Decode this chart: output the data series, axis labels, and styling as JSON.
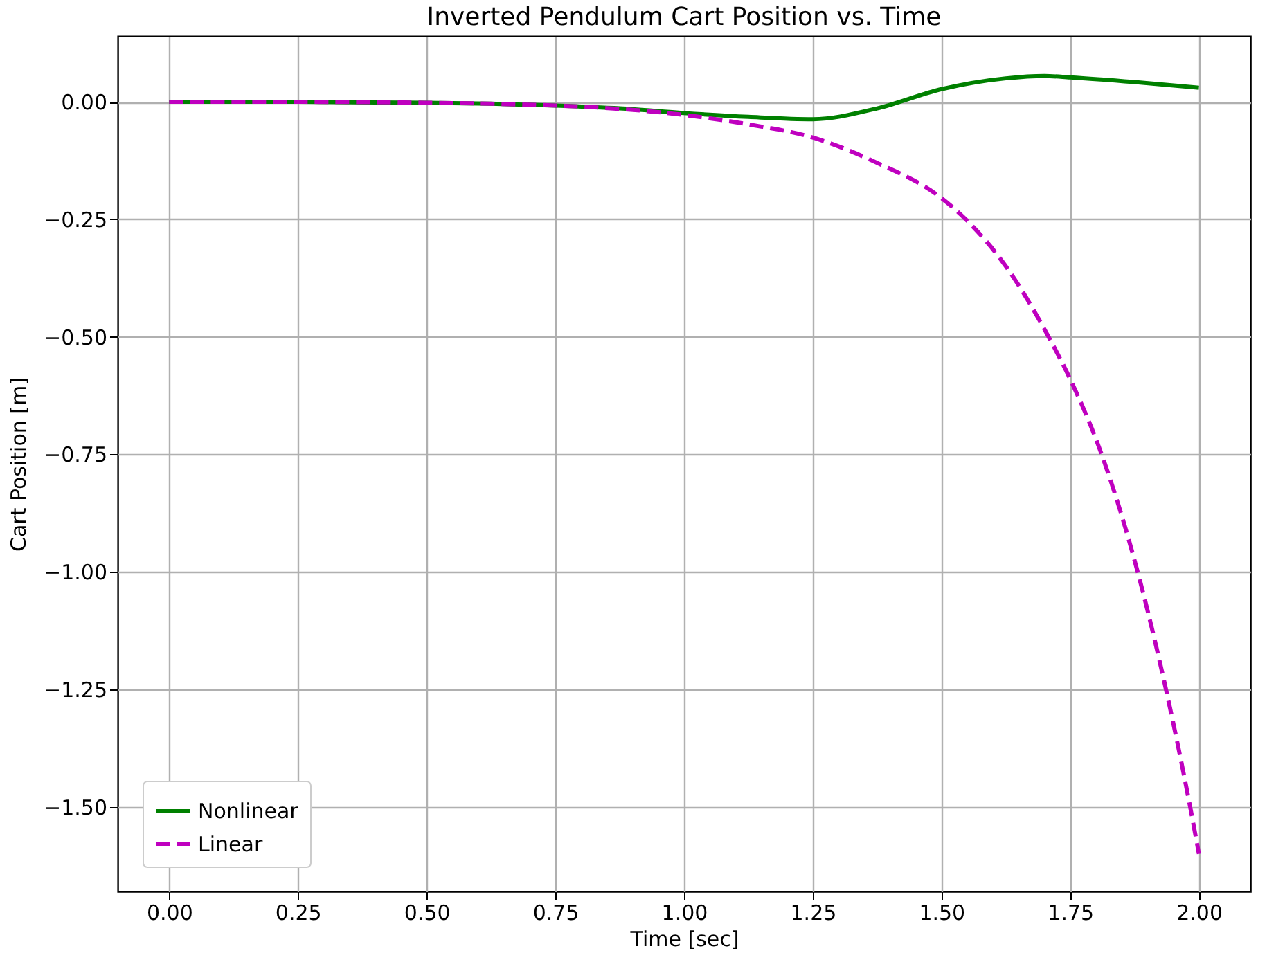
{
  "chart_data": {
    "type": "line",
    "title": "Inverted Pendulum Cart Position vs. Time",
    "xlabel": "Time [sec]",
    "ylabel": "Cart Position [m]",
    "xlim": [
      -0.1,
      2.1
    ],
    "xticks": [
      {
        "value": 0,
        "label": "0.00"
      },
      {
        "value": 0.25,
        "label": "0.25"
      },
      {
        "value": 0.5,
        "label": "0.50"
      },
      {
        "value": 0.75,
        "label": "0.75"
      },
      {
        "value": 1,
        "label": "1.00"
      },
      {
        "value": 1.25,
        "label": "1.25"
      },
      {
        "value": 1.5,
        "label": "1.50"
      },
      {
        "value": 1.75,
        "label": "1.75"
      },
      {
        "value": 2,
        "label": "2.00"
      }
    ],
    "ylim": [
      -1.68,
      0.14
    ],
    "yticks": [
      {
        "value": -1.5,
        "label": "−1.50"
      },
      {
        "value": -1.25,
        "label": "−1.25"
      },
      {
        "value": -1,
        "label": "−1.00"
      },
      {
        "value": -0.75,
        "label": "−0.75"
      },
      {
        "value": -0.5,
        "label": "−0.50"
      },
      {
        "value": -0.25,
        "label": "−0.25"
      },
      {
        "value": 0,
        "label": "0.00"
      }
    ],
    "grid": true,
    "legend": "bottom left",
    "series": [
      {
        "name": "Nonlinear",
        "color": "#008000",
        "line_style": "solid",
        "x": [
          0,
          0.25,
          0.5,
          0.625,
          0.75,
          0.875,
          1.0,
          1.125,
          1.25,
          1.375,
          1.5,
          1.625,
          1.7,
          1.75,
          1.875,
          2.0
        ],
        "values": [
          0,
          0,
          -0.002,
          -0.004,
          -0.008,
          -0.014,
          -0.024,
          -0.032,
          -0.037,
          -0.014,
          0.027,
          0.05,
          0.055,
          0.052,
          0.042,
          0.03
        ]
      },
      {
        "name": "Linear",
        "color": "#bf00bf",
        "line_style": "dashed",
        "x": [
          0,
          0.25,
          0.5,
          0.625,
          0.75,
          0.875,
          1.0,
          1.125,
          1.25,
          1.375,
          1.5,
          1.547,
          1.625,
          1.708,
          1.75,
          1.811,
          1.881,
          1.936,
          1.983,
          2.0
        ],
        "values": [
          0,
          0,
          -0.002,
          -0.004,
          -0.008,
          -0.015,
          -0.028,
          -0.048,
          -0.076,
          -0.13,
          -0.205,
          -0.25,
          -0.35,
          -0.5,
          -0.59,
          -0.75,
          -1.0,
          -1.25,
          -1.5,
          -1.6
        ]
      }
    ]
  }
}
